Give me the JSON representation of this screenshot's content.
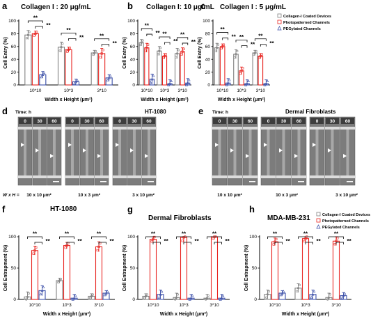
{
  "colors": {
    "collagen": "#808080",
    "photo": "#e8231f",
    "peg": "#3b4fa8"
  },
  "legend": [
    "Collagen-I Coated Devices",
    "Photopatterned Channels",
    "PEGylated Channels"
  ],
  "chart_data": [
    {
      "panel": "a",
      "type": "bar",
      "title": "Collagen I : 20 μg/mL",
      "xlabel": "Width x Height (μm²)",
      "ylabel": "Cell Entry (%)",
      "categories": [
        "10*10",
        "10*3",
        "3*10"
      ],
      "ylim": [
        0,
        100
      ],
      "yticks": [
        "0",
        "20",
        "40",
        "60",
        "80",
        "100"
      ],
      "series": [
        {
          "name": "Collagen-I Coated Devices",
          "values": [
            78,
            59,
            50
          ]
        },
        {
          "name": "Photopatterned Channels",
          "values": [
            80,
            55,
            49
          ]
        },
        {
          "name": "PEGylated Channels",
          "values": [
            16,
            5,
            11
          ]
        }
      ],
      "significance": [
        "**",
        "**",
        "**",
        "**",
        "**",
        "**"
      ]
    },
    {
      "panel": "b",
      "type": "bar",
      "title": "Collagen I: 10 μg/mL",
      "xlabel": "Width x Height (μm²)",
      "ylabel": "Cell Entry (%)",
      "categories": [
        "10*10",
        "10*3",
        "3*10"
      ],
      "ylim": [
        0,
        100
      ],
      "yticks": [
        "0",
        "20",
        "40",
        "60",
        "80",
        "100"
      ],
      "series": [
        {
          "name": "Collagen-I Coated Devices",
          "values": [
            66,
            53,
            49
          ]
        },
        {
          "name": "Photopatterned Channels",
          "values": [
            58,
            45,
            52
          ]
        },
        {
          "name": "PEGylated Channels",
          "values": [
            9,
            2,
            3
          ]
        }
      ],
      "significance": [
        "**",
        "**",
        "**",
        "**",
        "**",
        "**"
      ]
    },
    {
      "panel": "c",
      "type": "bar",
      "title": "Collagen I : 5 μg/mL",
      "xlabel": "Width x Height (μm²)",
      "ylabel": "Cell Entry (%)",
      "categories": [
        "10*10",
        "10*3",
        "3*10"
      ],
      "ylim": [
        0,
        100
      ],
      "yticks": [
        "0",
        "20",
        "40",
        "60",
        "80",
        "100"
      ],
      "series": [
        {
          "name": "Collagen-I Coated Devices",
          "values": [
            58,
            48,
            50
          ]
        },
        {
          "name": "Photopatterned Channels",
          "values": [
            60,
            22,
            45
          ]
        },
        {
          "name": "PEGylated Channels",
          "values": [
            3,
            2,
            2
          ]
        }
      ],
      "significance": [
        "**",
        "**",
        "**",
        "**",
        "**",
        "**"
      ]
    },
    {
      "panel": "f",
      "type": "bar",
      "title": "HT-1080",
      "xlabel": "Width x Height (μm²)",
      "ylabel": "Cell Entrapment (%)",
      "categories": [
        "10*10",
        "10*3",
        "3*10"
      ],
      "ylim": [
        0,
        100
      ],
      "yticks": [
        "0",
        "50",
        "100"
      ],
      "series": [
        {
          "name": "Collagen-I Coated Devices",
          "values": [
            4,
            30,
            5
          ]
        },
        {
          "name": "Photopatterned Channels",
          "values": [
            78,
            86,
            84
          ]
        },
        {
          "name": "PEGylated Channels",
          "values": [
            14,
            2,
            10
          ]
        }
      ],
      "significance": [
        "**",
        "**",
        "**",
        "**",
        "**",
        "**"
      ]
    },
    {
      "panel": "g",
      "type": "bar",
      "title": "Dermal  Fibroblasts",
      "xlabel": "Width x Height (μm²)",
      "ylabel": "Cell Entrapment (%)",
      "categories": [
        "10*10",
        "10*3",
        "3*10"
      ],
      "ylim": [
        0,
        100
      ],
      "yticks": [
        "0",
        "50",
        "100"
      ],
      "series": [
        {
          "name": "Collagen-I Coated Devices",
          "values": [
            5,
            3,
            2
          ]
        },
        {
          "name": "Photopatterned Channels",
          "values": [
            96,
            99,
            100
          ]
        },
        {
          "name": "PEGylated Channels",
          "values": [
            8,
            2,
            2
          ]
        }
      ],
      "significance": [
        "**",
        "**",
        "**",
        "**",
        "**",
        "**"
      ]
    },
    {
      "panel": "h",
      "type": "bar",
      "title": "MDA-MB-231",
      "xlabel": "Width x Height (μm²)",
      "ylabel": "Cell Entrapment (%)",
      "categories": [
        "10*10",
        "10*3",
        "3*10"
      ],
      "ylim": [
        0,
        100
      ],
      "yticks": [
        "0",
        "50",
        "100"
      ],
      "series": [
        {
          "name": "Collagen-I Coated Devices",
          "values": [
            8,
            18,
            3
          ]
        },
        {
          "name": "Photopatterned Channels",
          "values": [
            92,
            97,
            93
          ]
        },
        {
          "name": "PEGylated Channels",
          "values": [
            10,
            8,
            6
          ]
        }
      ],
      "significance": [
        "**",
        "**",
        "**",
        "**",
        "**",
        "**"
      ]
    }
  ],
  "micrographs": {
    "d": {
      "label": "d",
      "time_label": "Time: h",
      "cell": "HT-1080",
      "times": [
        "0",
        "30",
        "60"
      ],
      "sizes": [
        "10 x 10 μm²",
        "10 x 3 μm²",
        "3 x 10 μm²"
      ]
    },
    "e": {
      "label": "e",
      "time_label": "Time: h",
      "cell": "Dermal Fibroblasts",
      "times": [
        "0",
        "30",
        "60"
      ],
      "sizes": [
        "10 x 10 μm²",
        "10 x 3 μm²",
        "3 x 10 μm²"
      ]
    },
    "row_label": "W x H ="
  }
}
